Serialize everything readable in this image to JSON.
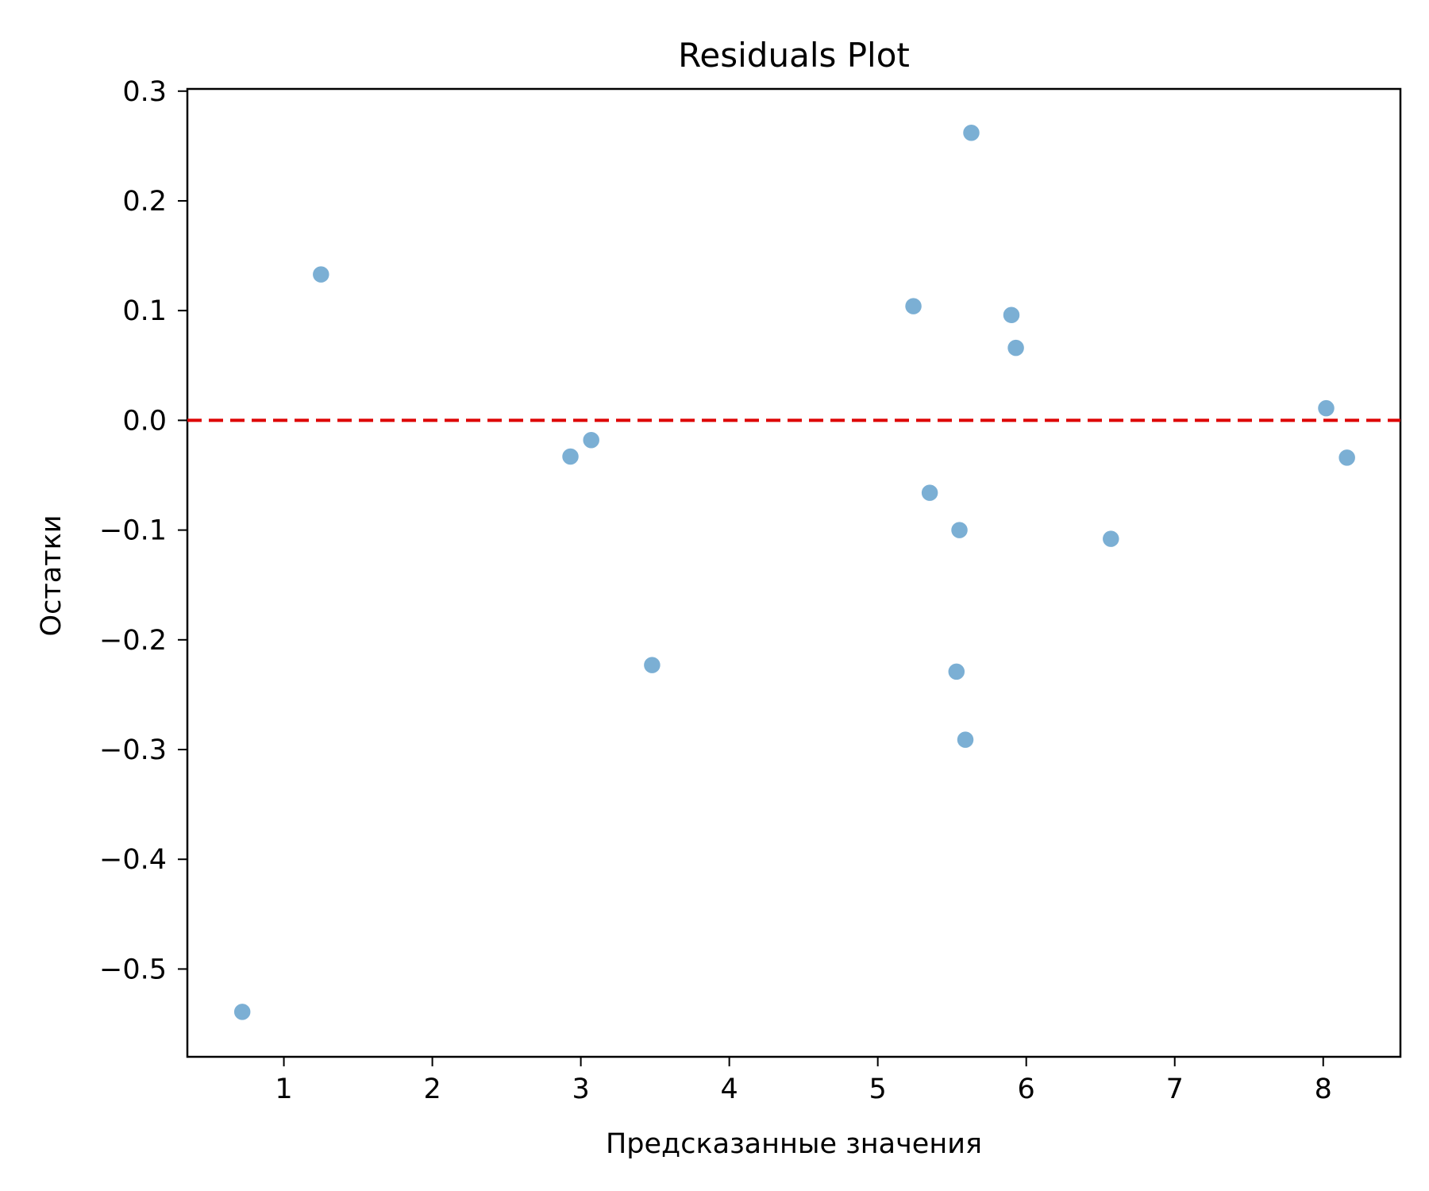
{
  "chart_data": {
    "type": "scatter",
    "title": "Residuals Plot",
    "xlabel": "Предсказанные значения",
    "ylabel": "Остатки",
    "xlim": [
      0.35,
      8.52
    ],
    "ylim": [
      -0.58,
      0.302
    ],
    "xticks": [
      1,
      2,
      3,
      4,
      5,
      6,
      7,
      8
    ],
    "xtick_labels": [
      "1",
      "2",
      "3",
      "4",
      "5",
      "6",
      "7",
      "8"
    ],
    "yticks": [
      -0.5,
      -0.4,
      -0.3,
      -0.2,
      -0.1,
      0.0,
      0.1,
      0.2,
      0.3
    ],
    "ytick_labels": [
      "−0.5",
      "−0.4",
      "−0.3",
      "−0.2",
      "−0.1",
      "0.0",
      "0.1",
      "0.2",
      "0.3"
    ],
    "grid": false,
    "point_color": "#7bafd4",
    "reference_line": {
      "y": 0.0,
      "style": "dashed",
      "color": "#dd0000"
    },
    "series": [
      {
        "points": [
          {
            "x": 0.72,
            "y": -0.539
          },
          {
            "x": 1.25,
            "y": 0.133
          },
          {
            "x": 2.93,
            "y": -0.033
          },
          {
            "x": 3.07,
            "y": -0.018
          },
          {
            "x": 3.48,
            "y": -0.223
          },
          {
            "x": 5.24,
            "y": 0.104
          },
          {
            "x": 5.35,
            "y": -0.066
          },
          {
            "x": 5.53,
            "y": -0.229
          },
          {
            "x": 5.55,
            "y": -0.1
          },
          {
            "x": 5.59,
            "y": -0.291
          },
          {
            "x": 5.63,
            "y": 0.262
          },
          {
            "x": 5.9,
            "y": 0.096
          },
          {
            "x": 5.93,
            "y": 0.066
          },
          {
            "x": 6.57,
            "y": -0.108
          },
          {
            "x": 8.02,
            "y": 0.011
          },
          {
            "x": 8.16,
            "y": -0.034
          }
        ]
      }
    ]
  }
}
